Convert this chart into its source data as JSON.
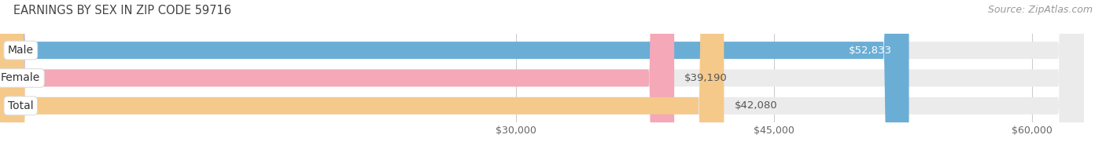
{
  "title": "EARNINGS BY SEX IN ZIP CODE 59716",
  "source": "Source: ZipAtlas.com",
  "categories": [
    "Male",
    "Female",
    "Total"
  ],
  "values": [
    52833,
    39190,
    42080
  ],
  "bar_colors": [
    "#6aaed6",
    "#f4a8b8",
    "#f5c98a"
  ],
  "label_colors_inside": [
    "#ffffff",
    "#555555",
    "#555555"
  ],
  "xmin": 0,
  "xmax": 63000,
  "xticks": [
    30000,
    45000,
    60000
  ],
  "xtick_labels": [
    "$30,000",
    "$45,000",
    "$60,000"
  ],
  "bar_height": 0.62,
  "background_color": "#ffffff",
  "bar_bg_color": "#ebebeb",
  "title_color": "#444444",
  "source_color": "#999999",
  "label_fontsize": 9.5,
  "title_fontsize": 10.5,
  "source_fontsize": 9,
  "tick_fontsize": 9,
  "category_fontsize": 10,
  "value_inside_threshold": 0.78
}
